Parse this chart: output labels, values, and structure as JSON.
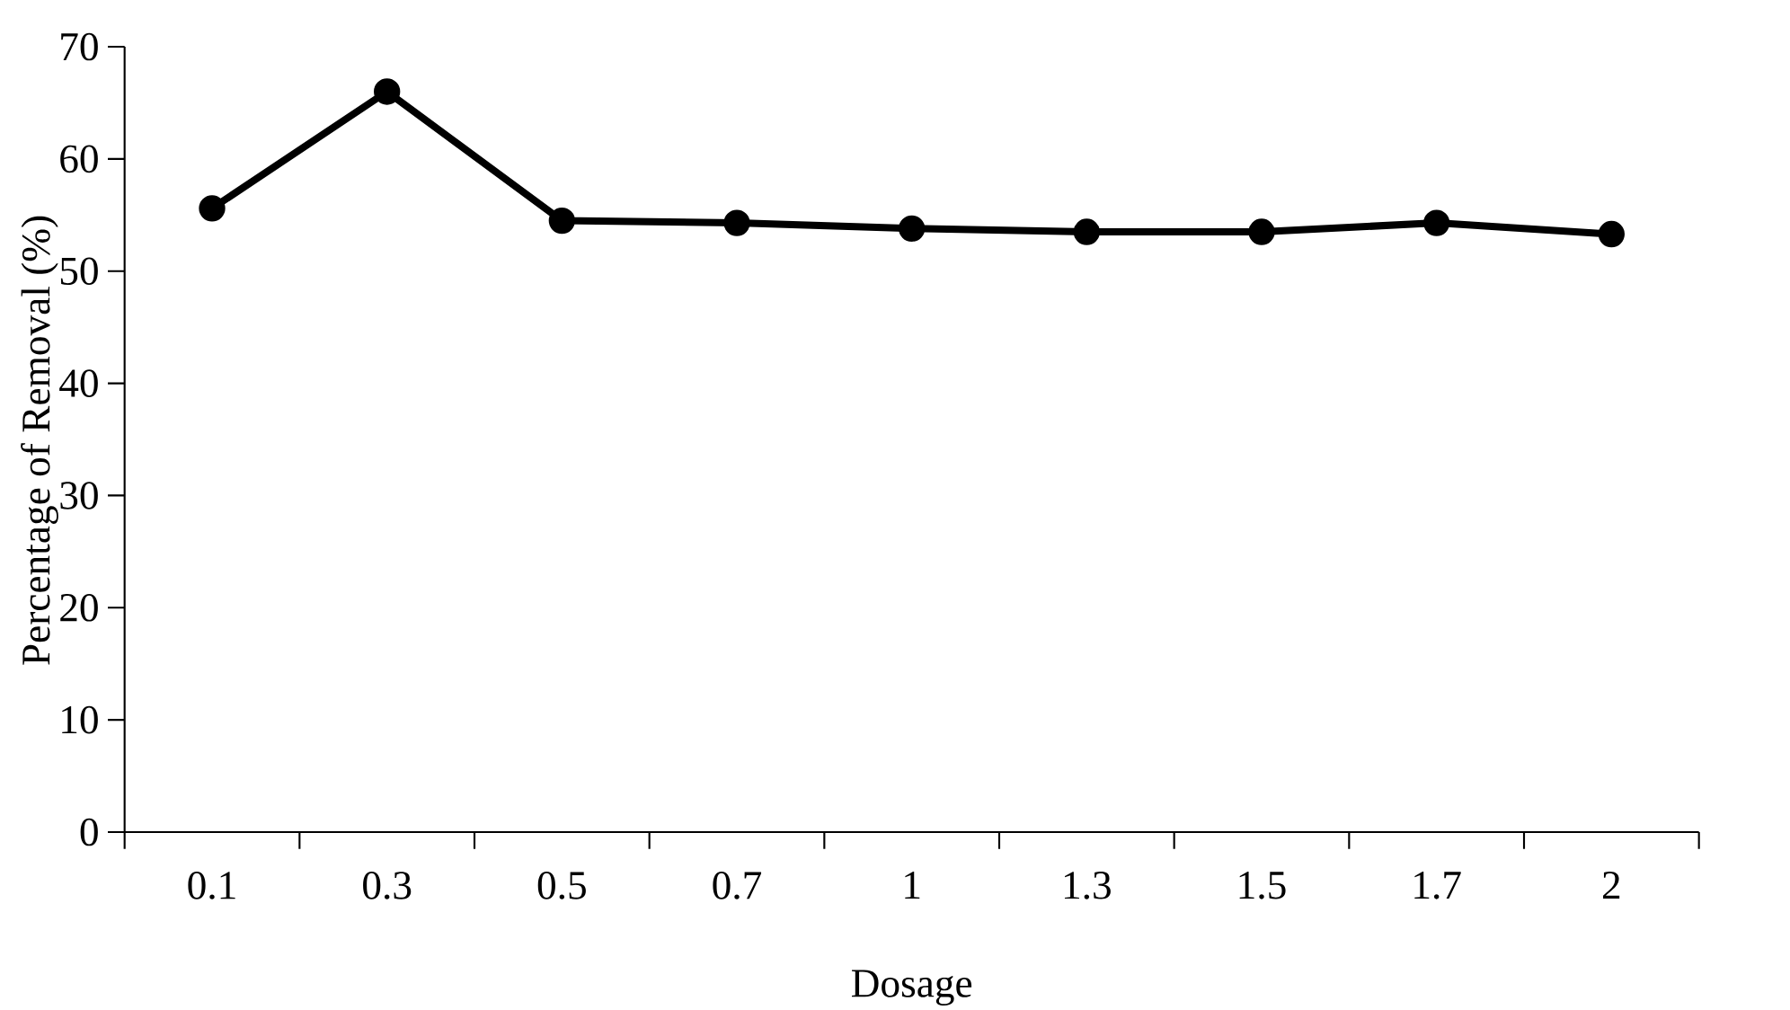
{
  "chart_data": {
    "type": "line",
    "xlabel": "Dosage",
    "ylabel": "Percentage of Removal (%)",
    "categories": [
      "0.1",
      "0.3",
      "0.5",
      "0.7",
      "1",
      "1.3",
      "1.5",
      "1.7",
      "2"
    ],
    "values": [
      55.6,
      66.0,
      54.5,
      54.3,
      53.8,
      53.5,
      53.5,
      54.3,
      53.3
    ],
    "color": "#000000",
    "marker": "circle",
    "line_style": "solid",
    "ylim": [
      0,
      70
    ],
    "yticks": [
      0,
      10,
      20,
      30,
      40,
      50,
      60,
      70
    ]
  }
}
